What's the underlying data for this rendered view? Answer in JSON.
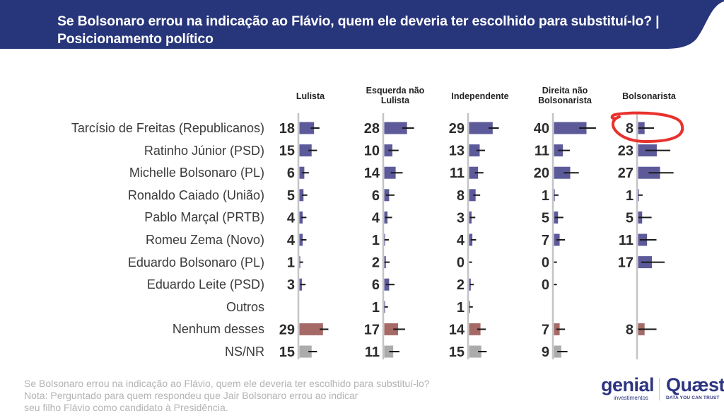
{
  "header": {
    "title": "Se Bolsonaro errou na indicação ao Flávio, quem ele deveria ter escolhido para substituí-lo? | Posicionamento político",
    "background_color": "#27357a"
  },
  "colors": {
    "candidate_bar": "#5d5a9a",
    "none_bar": "#a56a66",
    "nsnr_bar": "#ababab",
    "axis": "#c4c4c8",
    "error_bar": "#1a1a1a",
    "annotation": "#e8322e"
  },
  "chart_data": {
    "type": "bar",
    "orientation": "horizontal",
    "title": "Se Bolsonaro errou na indicação ao Flávio, quem ele deveria ter escolhido para substituí-lo? | Posicionamento político",
    "xlabel": "",
    "ylabel": "",
    "unit": "%",
    "grid": false,
    "layout": "small-multiples",
    "categories": [
      "Tarcísio de Freitas (Republicanos)",
      "Ratinho Júnior (PSD)",
      "Michelle Bolsonaro (PL)",
      "Ronaldo Caiado (União)",
      "Pablo Marçal (PRTB)",
      "Romeu Zema (Novo)",
      "Eduardo Bolsonaro (PL)",
      "Eduardo Leite (PSD)",
      "Outros",
      "Nenhum desses",
      "NS/NR"
    ],
    "category_types": [
      "candidate",
      "candidate",
      "candidate",
      "candidate",
      "candidate",
      "candidate",
      "candidate",
      "candidate",
      "candidate",
      "none",
      "nsnr"
    ],
    "series": [
      {
        "name": "Lulista",
        "header_lines": [
          "Lulista"
        ],
        "values": [
          18,
          15,
          6,
          5,
          4,
          4,
          1,
          3,
          null,
          29,
          15
        ],
        "error_margin": [
          4,
          4,
          3,
          2,
          2,
          2,
          1,
          2,
          null,
          4,
          4
        ]
      },
      {
        "name": "Esquerda não Lulista",
        "header_lines": [
          "Esquerda não",
          "Lulista"
        ],
        "values": [
          28,
          10,
          14,
          6,
          4,
          1,
          2,
          6,
          1,
          17,
          11
        ],
        "error_margin": [
          6,
          5,
          6,
          4,
          3,
          2,
          2,
          4,
          1,
          6,
          5
        ]
      },
      {
        "name": "Independente",
        "header_lines": [
          "Independente"
        ],
        "values": [
          29,
          13,
          11,
          8,
          3,
          4,
          0,
          2,
          1,
          14,
          15
        ],
        "error_margin": [
          5,
          4,
          4,
          3,
          2,
          2,
          1,
          1,
          1,
          4,
          4
        ]
      },
      {
        "name": "Direita não Bolsonarista",
        "header_lines": [
          "Direita não",
          "Bolsonarista"
        ],
        "values": [
          40,
          11,
          20,
          1,
          5,
          7,
          0,
          0,
          null,
          7,
          9
        ],
        "error_margin": [
          9,
          6,
          8,
          2,
          4,
          4,
          1,
          1,
          null,
          4,
          5
        ]
      },
      {
        "name": "Bolsonarista",
        "header_lines": [
          "Bolsonarista"
        ],
        "values": [
          8,
          23,
          27,
          1,
          5,
          11,
          17,
          null,
          null,
          8,
          null
        ],
        "error_margin": [
          9,
          14,
          14,
          2,
          9,
          9,
          13,
          null,
          null,
          12,
          null
        ]
      }
    ],
    "xlim": [
      0,
      50
    ],
    "annotations": [
      {
        "type": "hand-drawn circle",
        "target_series": "Bolsonarista",
        "target_category": "Tarcísio de Freitas (Republicanos)",
        "color": "#e8322e"
      }
    ]
  },
  "footer": {
    "lines": [
      "Se Bolsonaro errou na indicação ao Flávio, quem ele deveria ter escolhido para substituí-lo?",
      "Nota: Perguntado para quem respondeu que Jair Bolsonaro errou ao indicar",
      "seu filho Flávio como candidato à Presidência."
    ]
  },
  "logos": {
    "genial": "genial",
    "genial_sub": "investimentos",
    "quaest": "Quæst",
    "quaest_sub": "DATA YOU CAN TRUST"
  }
}
